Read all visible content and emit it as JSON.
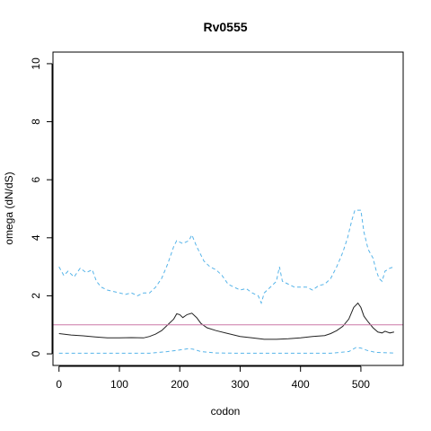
{
  "chart_data": {
    "type": "line",
    "title": "Rv0555",
    "xlabel": "codon",
    "ylabel": "omega (dN/dS)",
    "xlim": [
      -10,
      570
    ],
    "ylim": [
      -0.4,
      10.4
    ],
    "x_ticks": [
      0,
      100,
      200,
      300,
      400,
      500
    ],
    "y_ticks": [
      0,
      2,
      4,
      6,
      8,
      10
    ],
    "grid": false,
    "reference_line": {
      "y": 1.0,
      "color": "#cc79a7"
    },
    "series": [
      {
        "style": "dashed",
        "color": "#56b4e9",
        "points": [
          [
            0,
            3.0
          ],
          [
            8,
            2.7
          ],
          [
            15,
            2.85
          ],
          [
            25,
            2.65
          ],
          [
            35,
            2.95
          ],
          [
            45,
            2.8
          ],
          [
            55,
            2.9
          ],
          [
            62,
            2.5
          ],
          [
            70,
            2.3
          ],
          [
            80,
            2.2
          ],
          [
            90,
            2.15
          ],
          [
            100,
            2.1
          ],
          [
            110,
            2.05
          ],
          [
            120,
            2.1
          ],
          [
            130,
            2.0
          ],
          [
            140,
            2.1
          ],
          [
            150,
            2.1
          ],
          [
            160,
            2.3
          ],
          [
            170,
            2.6
          ],
          [
            180,
            3.1
          ],
          [
            190,
            3.7
          ],
          [
            195,
            3.9
          ],
          [
            205,
            3.8
          ],
          [
            215,
            3.9
          ],
          [
            220,
            4.1
          ],
          [
            228,
            3.7
          ],
          [
            240,
            3.2
          ],
          [
            250,
            3.0
          ],
          [
            260,
            2.9
          ],
          [
            270,
            2.7
          ],
          [
            280,
            2.4
          ],
          [
            290,
            2.3
          ],
          [
            300,
            2.2
          ],
          [
            310,
            2.25
          ],
          [
            320,
            2.1
          ],
          [
            330,
            2.0
          ],
          [
            335,
            1.75
          ],
          [
            340,
            2.1
          ],
          [
            350,
            2.3
          ],
          [
            360,
            2.5
          ],
          [
            365,
            3.0
          ],
          [
            370,
            2.5
          ],
          [
            380,
            2.4
          ],
          [
            390,
            2.3
          ],
          [
            400,
            2.3
          ],
          [
            410,
            2.3
          ],
          [
            420,
            2.2
          ],
          [
            430,
            2.35
          ],
          [
            440,
            2.4
          ],
          [
            450,
            2.6
          ],
          [
            460,
            3.0
          ],
          [
            470,
            3.5
          ],
          [
            478,
            4.0
          ],
          [
            485,
            4.6
          ],
          [
            490,
            4.95
          ],
          [
            500,
            4.95
          ],
          [
            505,
            4.2
          ],
          [
            512,
            3.6
          ],
          [
            520,
            3.3
          ],
          [
            525,
            2.9
          ],
          [
            530,
            2.6
          ],
          [
            535,
            2.5
          ],
          [
            540,
            2.85
          ],
          [
            548,
            2.95
          ],
          [
            555,
            3.0
          ]
        ]
      },
      {
        "style": "solid",
        "color": "#222222",
        "points": [
          [
            0,
            0.7
          ],
          [
            20,
            0.65
          ],
          [
            40,
            0.62
          ],
          [
            60,
            0.58
          ],
          [
            80,
            0.55
          ],
          [
            100,
            0.55
          ],
          [
            120,
            0.56
          ],
          [
            140,
            0.55
          ],
          [
            150,
            0.6
          ],
          [
            160,
            0.68
          ],
          [
            170,
            0.8
          ],
          [
            180,
            1.0
          ],
          [
            190,
            1.2
          ],
          [
            195,
            1.38
          ],
          [
            200,
            1.35
          ],
          [
            205,
            1.25
          ],
          [
            212,
            1.35
          ],
          [
            220,
            1.4
          ],
          [
            228,
            1.25
          ],
          [
            235,
            1.05
          ],
          [
            245,
            0.9
          ],
          [
            260,
            0.8
          ],
          [
            280,
            0.7
          ],
          [
            300,
            0.6
          ],
          [
            320,
            0.55
          ],
          [
            340,
            0.5
          ],
          [
            360,
            0.5
          ],
          [
            380,
            0.52
          ],
          [
            400,
            0.55
          ],
          [
            420,
            0.6
          ],
          [
            440,
            0.63
          ],
          [
            450,
            0.7
          ],
          [
            460,
            0.8
          ],
          [
            470,
            0.95
          ],
          [
            480,
            1.2
          ],
          [
            488,
            1.6
          ],
          [
            495,
            1.75
          ],
          [
            500,
            1.6
          ],
          [
            505,
            1.3
          ],
          [
            512,
            1.1
          ],
          [
            520,
            0.9
          ],
          [
            528,
            0.75
          ],
          [
            535,
            0.72
          ],
          [
            540,
            0.78
          ],
          [
            548,
            0.72
          ],
          [
            555,
            0.75
          ]
        ]
      },
      {
        "style": "dashed",
        "color": "#56b4e9",
        "points": [
          [
            0,
            0.02
          ],
          [
            50,
            0.02
          ],
          [
            100,
            0.02
          ],
          [
            150,
            0.02
          ],
          [
            180,
            0.08
          ],
          [
            195,
            0.12
          ],
          [
            205,
            0.15
          ],
          [
            215,
            0.18
          ],
          [
            222,
            0.16
          ],
          [
            235,
            0.08
          ],
          [
            260,
            0.03
          ],
          [
            300,
            0.02
          ],
          [
            350,
            0.02
          ],
          [
            400,
            0.02
          ],
          [
            450,
            0.02
          ],
          [
            480,
            0.08
          ],
          [
            492,
            0.22
          ],
          [
            500,
            0.2
          ],
          [
            510,
            0.12
          ],
          [
            525,
            0.05
          ],
          [
            555,
            0.03
          ]
        ]
      }
    ]
  }
}
